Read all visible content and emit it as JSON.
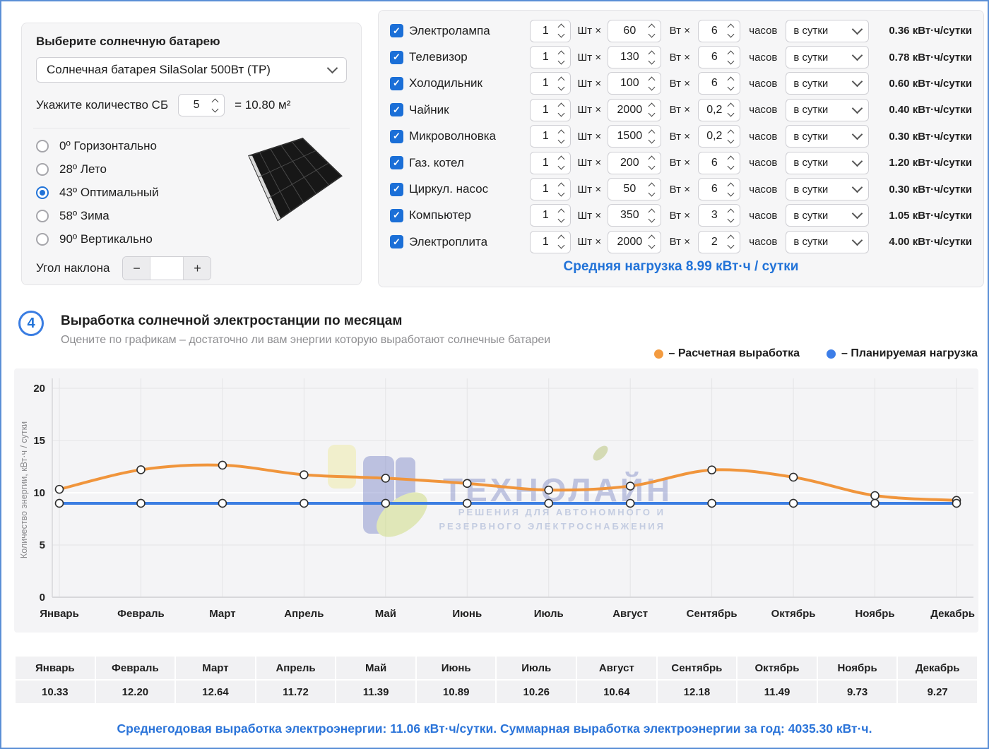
{
  "panel_select": {
    "title": "Выберите солнечную батарею",
    "battery_value": "Солнечная батарея SilaSolar 500Вт (ТР)",
    "qty_label": "Укажите количество СБ",
    "qty_value": "5",
    "area_text": "= 10.80 м²",
    "angles": [
      {
        "label": "0º Горизонтально",
        "selected": false
      },
      {
        "label": "28º Лето",
        "selected": false
      },
      {
        "label": "43º Оптимальный",
        "selected": true
      },
      {
        "label": "58º Зима",
        "selected": false
      },
      {
        "label": "90º Вертикально",
        "selected": false
      }
    ],
    "angle_label": "Угол наклона",
    "angle_minus": "−",
    "angle_plus": "+",
    "angle_value": ""
  },
  "appliances": {
    "unit_qty": "Шт ×",
    "unit_watt": "Вт ×",
    "unit_hours": "часов",
    "period_value": "в сутки",
    "daily_suffix": "кВт·ч/сутки",
    "rows": [
      {
        "name": "Электролампа",
        "qty": "1",
        "watt": "60",
        "hours": "6",
        "daily": "0.36"
      },
      {
        "name": "Телевизор",
        "qty": "1",
        "watt": "130",
        "hours": "6",
        "daily": "0.78"
      },
      {
        "name": "Холодильник",
        "qty": "1",
        "watt": "100",
        "hours": "6",
        "daily": "0.60"
      },
      {
        "name": "Чайник",
        "qty": "1",
        "watt": "2000",
        "hours": "0,2",
        "daily": "0.40"
      },
      {
        "name": "Микроволновка",
        "qty": "1",
        "watt": "1500",
        "hours": "0,2",
        "daily": "0.30"
      },
      {
        "name": "Газ. котел",
        "qty": "1",
        "watt": "200",
        "hours": "6",
        "daily": "1.20"
      },
      {
        "name": "Циркул. насос",
        "qty": "1",
        "watt": "50",
        "hours": "6",
        "daily": "0.30"
      },
      {
        "name": "Компьютер",
        "qty": "1",
        "watt": "350",
        "hours": "3",
        "daily": "1.05"
      },
      {
        "name": "Электроплита",
        "qty": "1",
        "watt": "2000",
        "hours": "2",
        "daily": "4.00"
      }
    ],
    "avg_load": "Средняя нагрузка 8.99 кВт·ч / сутки"
  },
  "section4": {
    "number": "4",
    "title": "Выработка солнечной электростанции по месяцам",
    "subtitle": "Оцените по графикам – достаточно ли вам энергии которую выработают солнечные батареи",
    "legend": [
      {
        "label": "– Расчетная выработка",
        "color": "#f39b40"
      },
      {
        "label": "– Планируемая нагрузка",
        "color": "#3d7ee8"
      }
    ]
  },
  "chart_data": {
    "type": "line",
    "categories": [
      "Январь",
      "Февраль",
      "Март",
      "Апрель",
      "Май",
      "Июнь",
      "Июль",
      "Август",
      "Сентябрь",
      "Октябрь",
      "Ноябрь",
      "Декабрь"
    ],
    "series": [
      {
        "name": "Расчетная выработка",
        "color": "#f0953c",
        "values": [
          10.33,
          12.2,
          12.64,
          11.72,
          11.39,
          10.89,
          10.26,
          10.64,
          12.18,
          11.49,
          9.73,
          9.27
        ]
      },
      {
        "name": "Планируемая нагрузка",
        "color": "#3c7ee2",
        "values": [
          8.99,
          8.99,
          8.99,
          8.99,
          8.99,
          8.99,
          8.99,
          8.99,
          8.99,
          8.99,
          8.99,
          8.99
        ]
      }
    ],
    "title": "Выработка солнечной электростанции по месяцам",
    "xlabel": "",
    "ylabel": "Количество энергии, кВт·ч / сутки",
    "yticks": [
      0,
      5,
      10,
      15,
      20
    ],
    "ylim": [
      0,
      21
    ],
    "grid": true,
    "legend_position": "top-right",
    "marker": "open-circle"
  },
  "watermark": {
    "title": "ТЕХНОЛАЙН",
    "line1": "РЕШЕНИЯ ДЛЯ АВТОНОМНОГО И",
    "line2": "РЕЗЕРВНОГО ЭЛЕКТРОСНАБЖЕНИЯ"
  },
  "table": {
    "months": [
      "Январь",
      "Февраль",
      "Март",
      "Апрель",
      "Май",
      "Июнь",
      "Июль",
      "Август",
      "Сентябрь",
      "Октябрь",
      "Ноябрь",
      "Декабрь"
    ],
    "values": [
      "10.33",
      "12.20",
      "12.64",
      "11.72",
      "11.39",
      "10.89",
      "10.26",
      "10.64",
      "12.18",
      "11.49",
      "9.73",
      "9.27"
    ]
  },
  "footer": {
    "part1": "Среднегодовая выработка электроэнергии: ",
    "value1": "11.06 кВт·ч/сутки.",
    "part2": " Суммарная выработка электроэнергии за год: ",
    "value2": " 4035.30 кВт·ч."
  },
  "colors": {
    "accent_blue": "#2173d8",
    "orange_line": "#f0953c",
    "blue_line": "#3c7ee2",
    "page_border": "#5b8fd6"
  }
}
